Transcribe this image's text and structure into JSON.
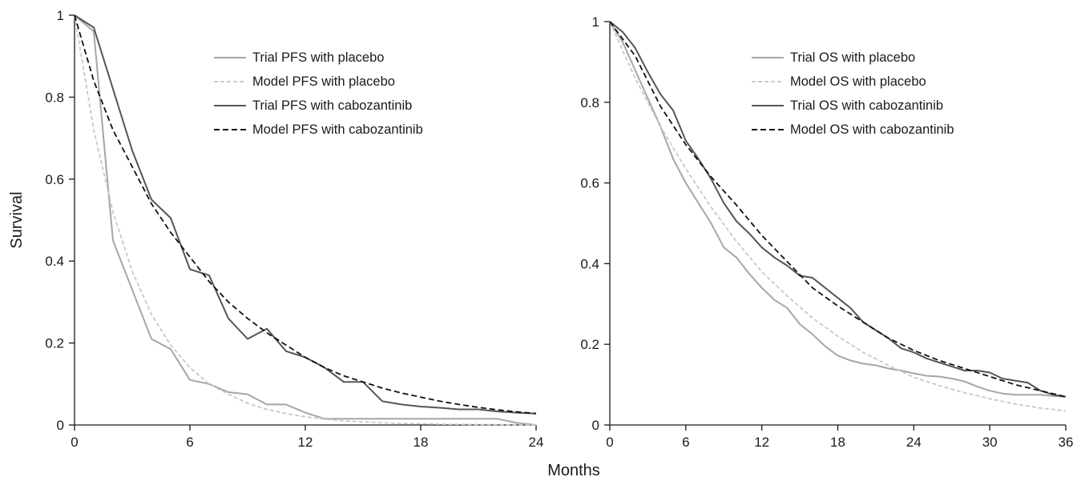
{
  "figure": {
    "shared_ylabel": "Survival",
    "shared_xlabel": "Months"
  },
  "chart_data": [
    {
      "type": "line",
      "title": "",
      "xlabel": "Months",
      "ylabel": "Survival",
      "xlim": [
        0,
        24
      ],
      "ylim": [
        0,
        1
      ],
      "xticks": [
        0,
        6,
        12,
        18,
        24
      ],
      "yticks": [
        0,
        0.2,
        0.4,
        0.6,
        0.8,
        1
      ],
      "ytick_labels": [
        "0",
        "0.2",
        "0.4",
        "0.6",
        "0.8",
        "1"
      ],
      "grid": false,
      "legend_position": "top-right",
      "series": [
        {
          "name": "Trial PFS with placebo",
          "color": "#a6a6a6",
          "dash": "solid",
          "x": [
            0,
            1,
            2,
            3,
            4,
            5,
            6,
            7,
            8,
            9,
            10,
            11,
            12,
            13,
            14,
            15,
            16,
            17,
            18,
            19,
            20,
            21,
            22,
            23,
            24
          ],
          "y": [
            1.0,
            0.96,
            0.45,
            0.33,
            0.21,
            0.185,
            0.11,
            0.1,
            0.08,
            0.075,
            0.05,
            0.05,
            0.03,
            0.015,
            0.015,
            0.015,
            0.015,
            0.015,
            0.015,
            0.015,
            0.015,
            0.015,
            0.015,
            0.005,
            0.0
          ]
        },
        {
          "name": "Model PFS with placebo",
          "color": "#c8c8c8",
          "dash": "dashed",
          "x": [
            0,
            1,
            2,
            3,
            4,
            5,
            6,
            7,
            8,
            9,
            10,
            11,
            12,
            13,
            14,
            15,
            16,
            17,
            18,
            19,
            20,
            21,
            22,
            23,
            24
          ],
          "y": [
            1.0,
            0.72,
            0.52,
            0.375,
            0.27,
            0.195,
            0.14,
            0.1,
            0.075,
            0.053,
            0.038,
            0.028,
            0.02,
            0.014,
            0.01,
            0.0075,
            0.0055,
            0.004,
            0.003,
            0.002,
            0.0015,
            0.001,
            0.001,
            0.0005,
            0.0
          ]
        },
        {
          "name": "Trial PFS with cabozantinib",
          "color": "#555555",
          "dash": "solid",
          "x": [
            0,
            1,
            2,
            3,
            4,
            5,
            6,
            7,
            8,
            9,
            10,
            11,
            12,
            13,
            14,
            15,
            16,
            17,
            18,
            19,
            20,
            21,
            22,
            23,
            24
          ],
          "y": [
            1.0,
            0.97,
            0.82,
            0.67,
            0.55,
            0.505,
            0.38,
            0.365,
            0.26,
            0.21,
            0.235,
            0.18,
            0.165,
            0.14,
            0.105,
            0.105,
            0.058,
            0.05,
            0.045,
            0.042,
            0.038,
            0.038,
            0.033,
            0.03,
            0.028
          ]
        },
        {
          "name": "Model PFS with cabozantinib",
          "color": "#111111",
          "dash": "dashed",
          "x": [
            0,
            1,
            2,
            3,
            4,
            5,
            6,
            7,
            8,
            9,
            10,
            11,
            12,
            13,
            14,
            15,
            16,
            17,
            18,
            19,
            20,
            21,
            22,
            23,
            24
          ],
          "y": [
            1.0,
            0.84,
            0.72,
            0.63,
            0.54,
            0.47,
            0.41,
            0.35,
            0.3,
            0.26,
            0.225,
            0.195,
            0.165,
            0.14,
            0.12,
            0.105,
            0.09,
            0.078,
            0.068,
            0.058,
            0.05,
            0.043,
            0.037,
            0.032,
            0.028
          ]
        }
      ]
    },
    {
      "type": "line",
      "title": "",
      "xlabel": "Months",
      "ylabel": "Survival",
      "xlim": [
        0,
        36
      ],
      "ylim": [
        0,
        1
      ],
      "xticks": [
        0,
        6,
        12,
        18,
        24,
        30,
        36
      ],
      "yticks": [
        0,
        0.2,
        0.4,
        0.6,
        0.8,
        1
      ],
      "ytick_labels": [
        "0",
        "0.2",
        "0.4",
        "0.6",
        "0.8",
        "1"
      ],
      "grid": false,
      "legend_position": "top-right",
      "series": [
        {
          "name": "Trial OS with placebo",
          "color": "#a6a6a6",
          "dash": "solid",
          "x": [
            0,
            1,
            2,
            3,
            4,
            5,
            6,
            7,
            8,
            9,
            10,
            11,
            12,
            13,
            14,
            15,
            16,
            17,
            18,
            19,
            20,
            21,
            22,
            23,
            24,
            25,
            26,
            27,
            28,
            29,
            30,
            31,
            32,
            33,
            34,
            35,
            36
          ],
          "y": [
            1.0,
            0.95,
            0.88,
            0.81,
            0.74,
            0.66,
            0.6,
            0.55,
            0.5,
            0.44,
            0.415,
            0.375,
            0.34,
            0.31,
            0.29,
            0.25,
            0.225,
            0.195,
            0.172,
            0.16,
            0.152,
            0.148,
            0.14,
            0.135,
            0.128,
            0.122,
            0.12,
            0.115,
            0.108,
            0.095,
            0.085,
            0.078,
            0.075,
            0.075,
            0.075,
            0.072,
            0.07
          ]
        },
        {
          "name": "Model OS with placebo",
          "color": "#c8c8c8",
          "dash": "dashed",
          "x": [
            0,
            2,
            4,
            6,
            8,
            10,
            12,
            14,
            16,
            18,
            20,
            22,
            24,
            26,
            28,
            30,
            32,
            34,
            36
          ],
          "y": [
            1.0,
            0.86,
            0.74,
            0.635,
            0.54,
            0.455,
            0.38,
            0.32,
            0.265,
            0.22,
            0.18,
            0.148,
            0.118,
            0.098,
            0.08,
            0.065,
            0.052,
            0.042,
            0.035
          ]
        },
        {
          "name": "Trial OS with cabozantinib",
          "color": "#555555",
          "dash": "solid",
          "x": [
            0,
            1,
            2,
            3,
            4,
            5,
            6,
            7,
            8,
            9,
            10,
            11,
            12,
            13,
            14,
            15,
            16,
            17,
            18,
            19,
            20,
            21,
            22,
            23,
            24,
            25,
            26,
            27,
            28,
            29,
            30,
            31,
            32,
            33,
            34,
            35,
            36
          ],
          "y": [
            1.0,
            0.975,
            0.935,
            0.875,
            0.82,
            0.78,
            0.705,
            0.66,
            0.61,
            0.55,
            0.505,
            0.475,
            0.44,
            0.415,
            0.395,
            0.37,
            0.365,
            0.34,
            0.315,
            0.29,
            0.255,
            0.235,
            0.215,
            0.19,
            0.18,
            0.165,
            0.155,
            0.145,
            0.135,
            0.135,
            0.13,
            0.115,
            0.11,
            0.105,
            0.085,
            0.075,
            0.07
          ]
        },
        {
          "name": "Model OS with cabozantinib",
          "color": "#111111",
          "dash": "dashed",
          "x": [
            0,
            2,
            4,
            6,
            8,
            10,
            12,
            14,
            16,
            18,
            20,
            22,
            24,
            26,
            28,
            30,
            32,
            34,
            36
          ],
          "y": [
            1.0,
            0.915,
            0.79,
            0.695,
            0.615,
            0.545,
            0.47,
            0.405,
            0.34,
            0.295,
            0.255,
            0.215,
            0.185,
            0.16,
            0.14,
            0.12,
            0.1,
            0.085,
            0.07
          ]
        }
      ]
    }
  ]
}
